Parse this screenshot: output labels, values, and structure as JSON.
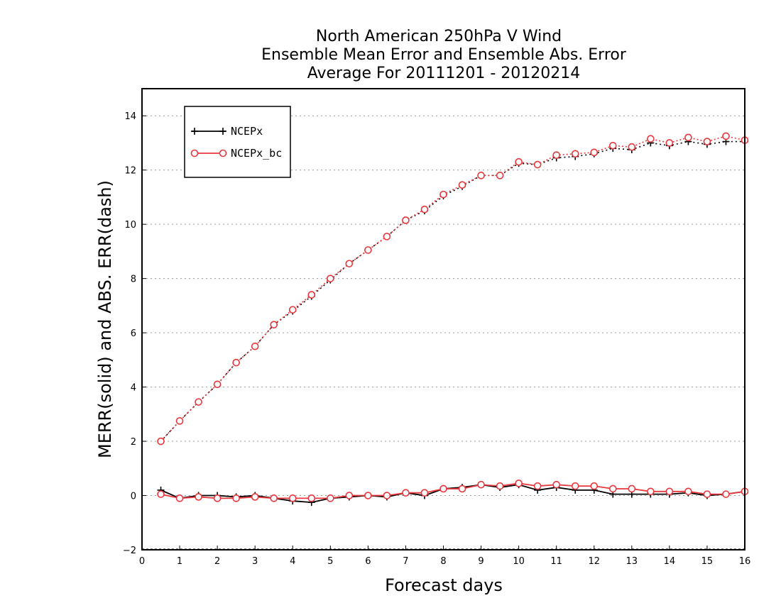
{
  "chart_data": {
    "type": "line",
    "title": [
      "North American 250hPa V Wind",
      "Ensemble Mean Error and Ensemble Abs. Error",
      "Average For 20111201 - 20120214"
    ],
    "xlabel": "Forecast days",
    "ylabel": "MERR(solid) and ABS. ERR(dash)",
    "xlim": [
      0,
      16
    ],
    "ylim": [
      -2,
      15
    ],
    "xticks": [
      0,
      1,
      2,
      3,
      4,
      5,
      6,
      7,
      8,
      9,
      10,
      11,
      12,
      13,
      14,
      15,
      16
    ],
    "yticks": [
      -2,
      0,
      2,
      4,
      6,
      8,
      10,
      12,
      14
    ],
    "grid": "horizontal dotted",
    "legend_position": "top-left",
    "x": [
      0.5,
      1,
      1.5,
      2,
      2.5,
      3,
      3.5,
      4,
      4.5,
      5,
      5.5,
      6,
      6.5,
      7,
      7.5,
      8,
      8.5,
      9,
      9.5,
      10,
      10.5,
      11,
      11.5,
      12,
      12.5,
      13,
      13.5,
      14,
      14.5,
      15,
      15.5,
      16
    ],
    "series": [
      {
        "name": "NCEPx",
        "color": "#000000",
        "marker": "plus",
        "merr": [
          0.2,
          -0.1,
          0.0,
          0.0,
          -0.05,
          0.0,
          -0.1,
          -0.2,
          -0.25,
          -0.1,
          -0.05,
          0.0,
          -0.05,
          0.1,
          0.0,
          0.25,
          0.3,
          0.4,
          0.3,
          0.4,
          0.2,
          0.3,
          0.2,
          0.2,
          0.05,
          0.05,
          0.05,
          0.05,
          0.1,
          0.0,
          0.05,
          0.15
        ],
        "abs_err": [
          2.0,
          2.75,
          3.45,
          4.1,
          4.9,
          5.5,
          6.3,
          6.8,
          7.35,
          7.95,
          8.55,
          9.05,
          9.55,
          10.15,
          10.5,
          11.05,
          11.4,
          11.8,
          11.8,
          12.25,
          12.2,
          12.45,
          12.5,
          12.6,
          12.8,
          12.75,
          13.0,
          12.9,
          13.05,
          12.95,
          13.05,
          13.05
        ]
      },
      {
        "name": "NCEPx_bc",
        "color": "#e8383d",
        "marker": "circle",
        "merr": [
          0.05,
          -0.1,
          -0.05,
          -0.1,
          -0.1,
          -0.05,
          -0.1,
          -0.1,
          -0.1,
          -0.1,
          0.0,
          0.0,
          0.0,
          0.1,
          0.1,
          0.25,
          0.25,
          0.4,
          0.35,
          0.45,
          0.35,
          0.4,
          0.35,
          0.35,
          0.25,
          0.25,
          0.15,
          0.15,
          0.15,
          0.05,
          0.05,
          0.15
        ],
        "abs_err": [
          2.0,
          2.75,
          3.45,
          4.1,
          4.9,
          5.5,
          6.3,
          6.85,
          7.4,
          8.0,
          8.55,
          9.05,
          9.55,
          10.15,
          10.55,
          11.1,
          11.45,
          11.8,
          11.8,
          12.3,
          12.2,
          12.55,
          12.6,
          12.65,
          12.9,
          12.85,
          13.15,
          13.0,
          13.2,
          13.05,
          13.25,
          13.1
        ]
      }
    ]
  }
}
